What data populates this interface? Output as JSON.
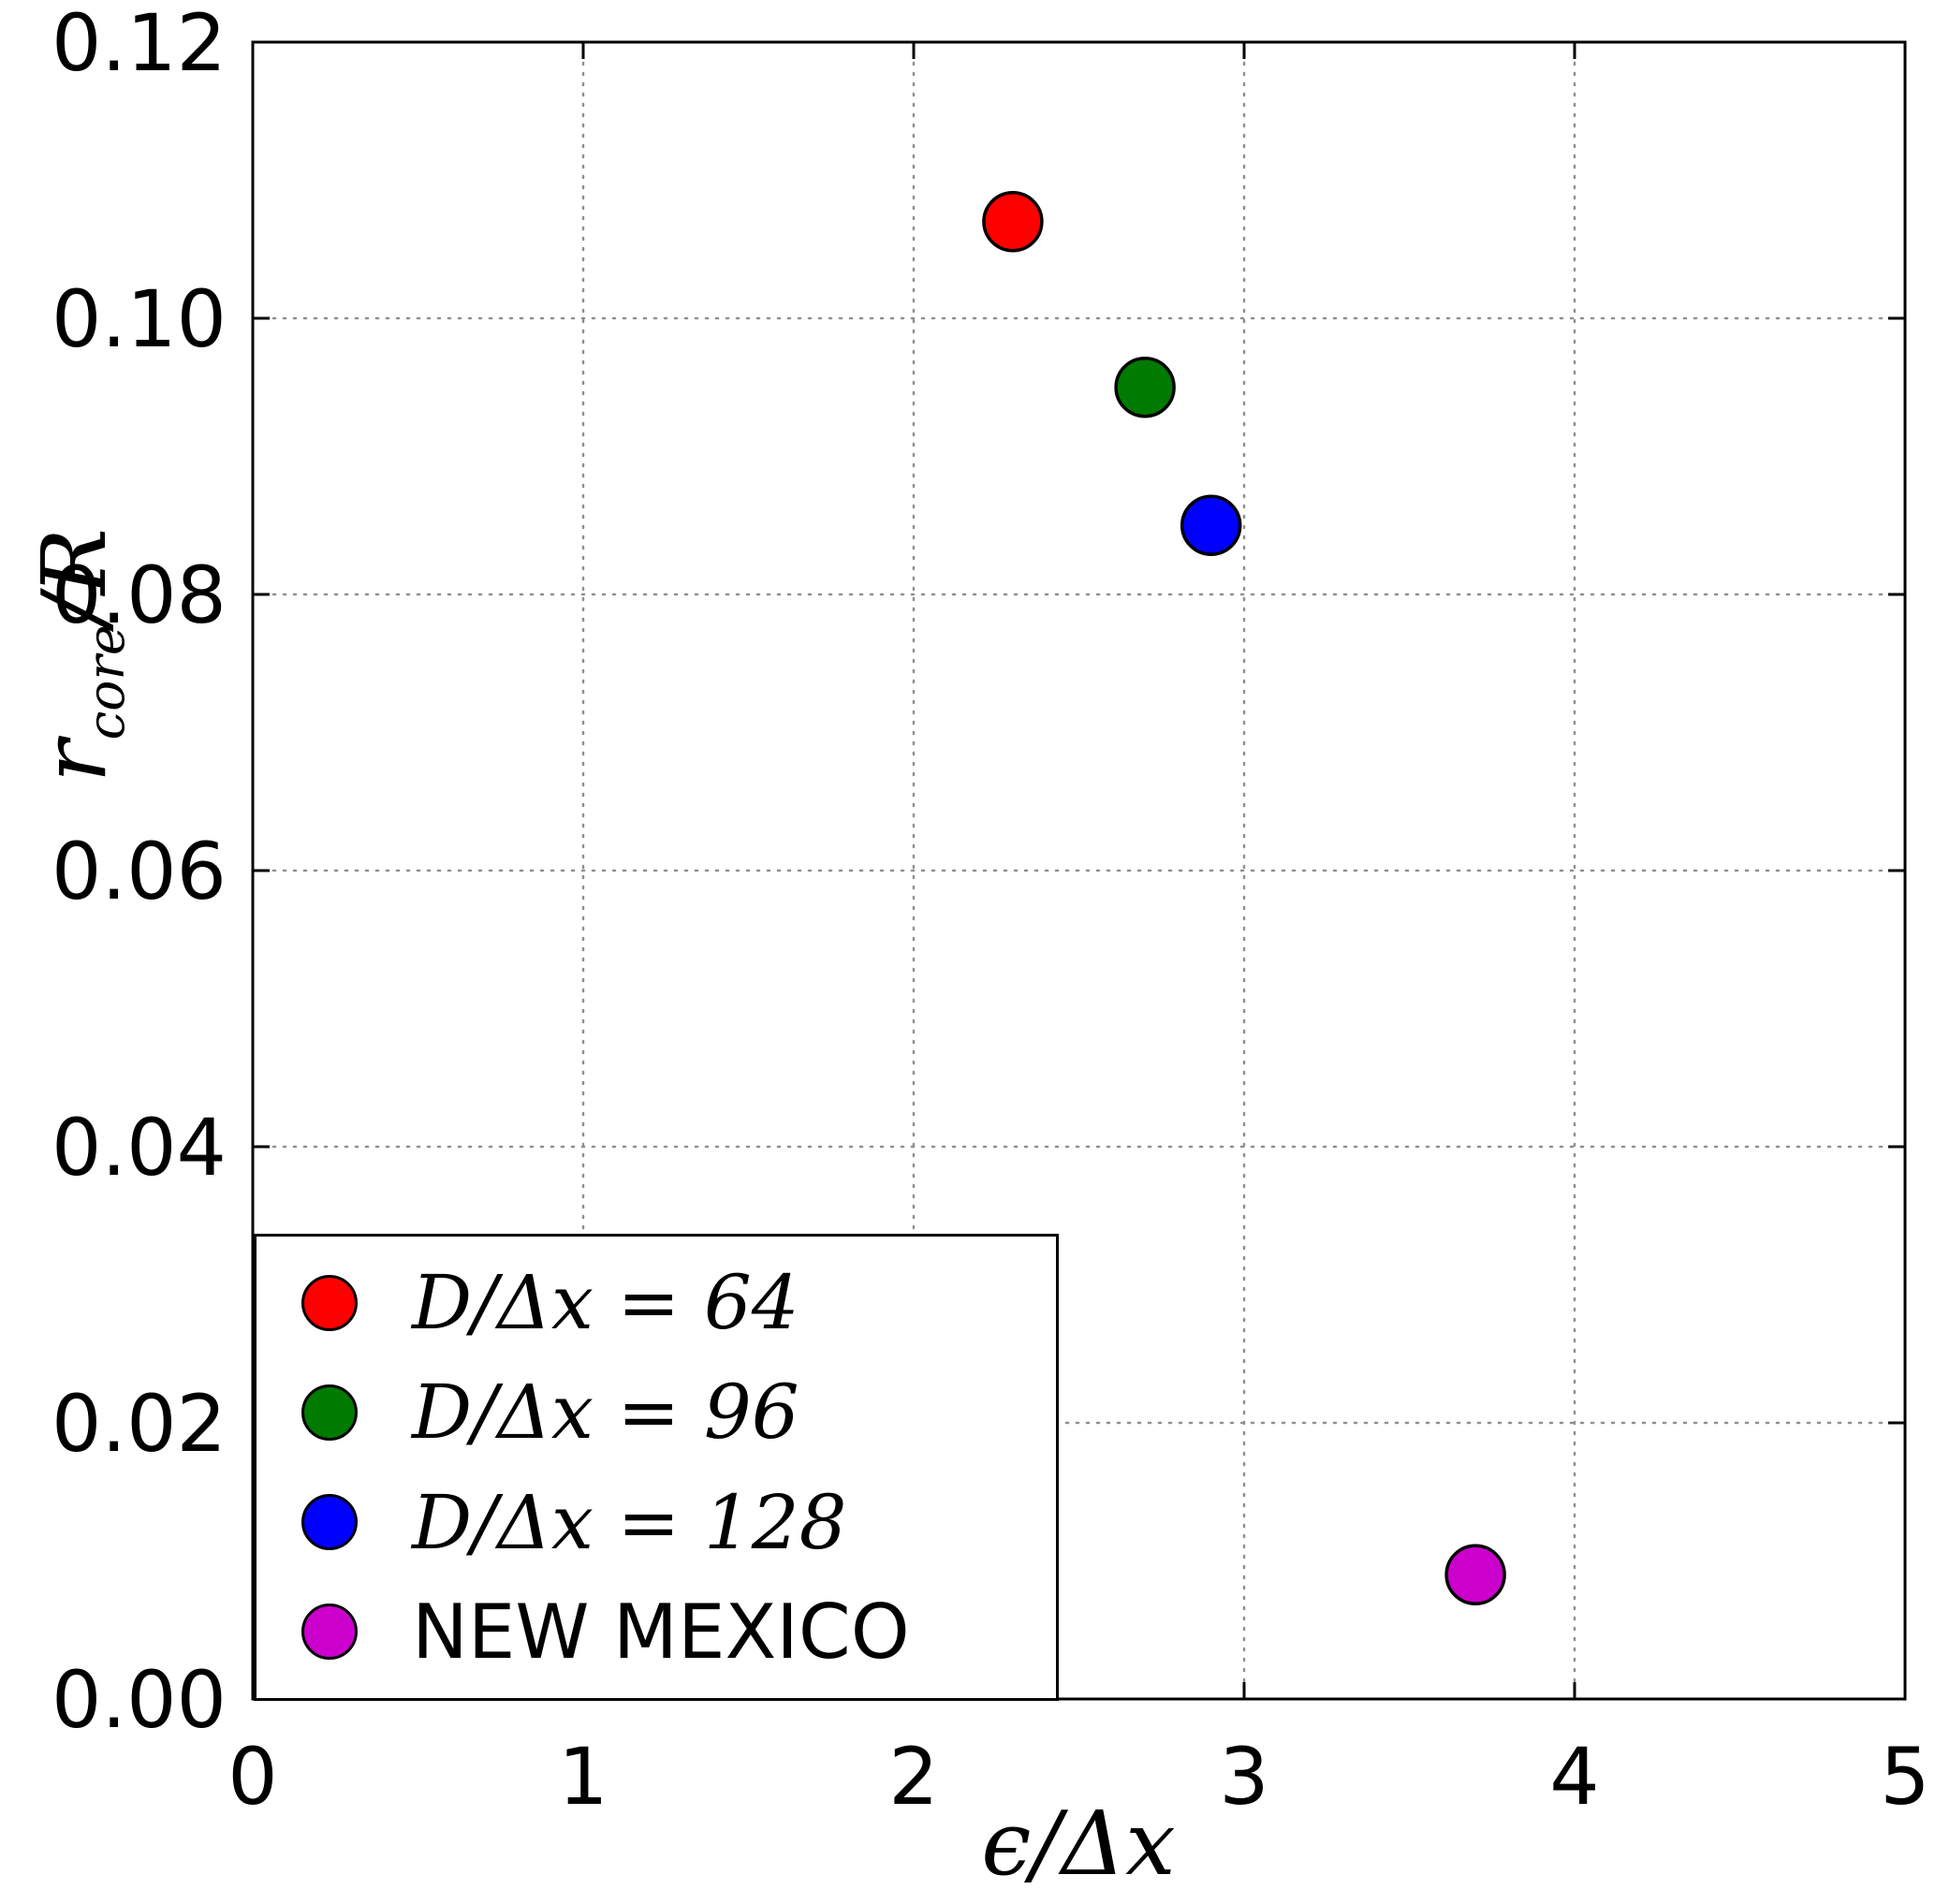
{
  "chart_data": {
    "type": "scatter",
    "xlabel": "ϵ/Δx",
    "ylabel": "r_core/R",
    "ylabel_parts": {
      "base": "r",
      "sub": "core",
      "suffix": "/R"
    },
    "xlim": [
      0,
      5
    ],
    "ylim": [
      0,
      0.12
    ],
    "xticks": [
      0,
      1,
      2,
      3,
      4,
      5
    ],
    "xtick_labels": [
      "0",
      "1",
      "2",
      "3",
      "4",
      "5"
    ],
    "yticks": [
      0,
      0.02,
      0.04,
      0.06,
      0.08,
      0.1,
      0.12
    ],
    "ytick_labels": [
      "0.00",
      "0.02",
      "0.04",
      "0.06",
      "0.08",
      "0.10",
      "0.12"
    ],
    "grid": true,
    "grid_style": "dotted",
    "legend_position": "lower-left",
    "marker": "circle",
    "series": [
      {
        "label": "D/Δx = 64",
        "color": "#ff0000",
        "x": 2.3,
        "y": 0.107
      },
      {
        "label": "D/Δx = 96",
        "color": "#007a00",
        "x": 2.7,
        "y": 0.095
      },
      {
        "label": "D/Δx = 128",
        "color": "#0000ff",
        "x": 2.9,
        "y": 0.085
      },
      {
        "label": "NEW MEXICO",
        "color": "#cc00cc",
        "x": 3.7,
        "y": 0.009
      }
    ]
  }
}
